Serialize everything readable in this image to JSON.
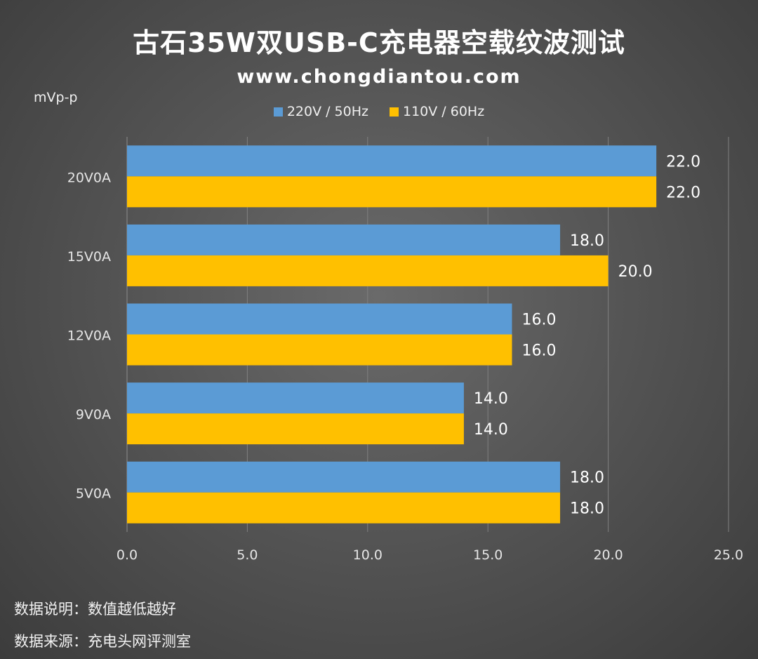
{
  "header": {
    "title": "古石35W双USB-C充电器空载纹波测试",
    "subtitle": "www.chongdiantou.com",
    "unit": "mVp-p"
  },
  "footer": {
    "note1": "数据说明：数值越低越好",
    "note2": "数据来源：充电头网评测室"
  },
  "chart_data": {
    "type": "bar",
    "orientation": "horizontal",
    "categories": [
      "20V0A",
      "15V0A",
      "12V0A",
      "9V0A",
      "5V0A"
    ],
    "series": [
      {
        "name": "220V / 50Hz",
        "color": "#5b9bd5",
        "values": [
          22.0,
          18.0,
          16.0,
          14.0,
          18.0
        ]
      },
      {
        "name": "110V / 60Hz",
        "color": "#ffc000",
        "values": [
          22.0,
          20.0,
          16.0,
          14.0,
          18.0
        ]
      }
    ],
    "xlim": [
      0,
      25
    ],
    "xticks": [
      "0.0",
      "5.0",
      "10.0",
      "15.0",
      "20.0",
      "25.0"
    ],
    "ylabel": "mVp-p",
    "grid": true,
    "legend_position": "top"
  }
}
